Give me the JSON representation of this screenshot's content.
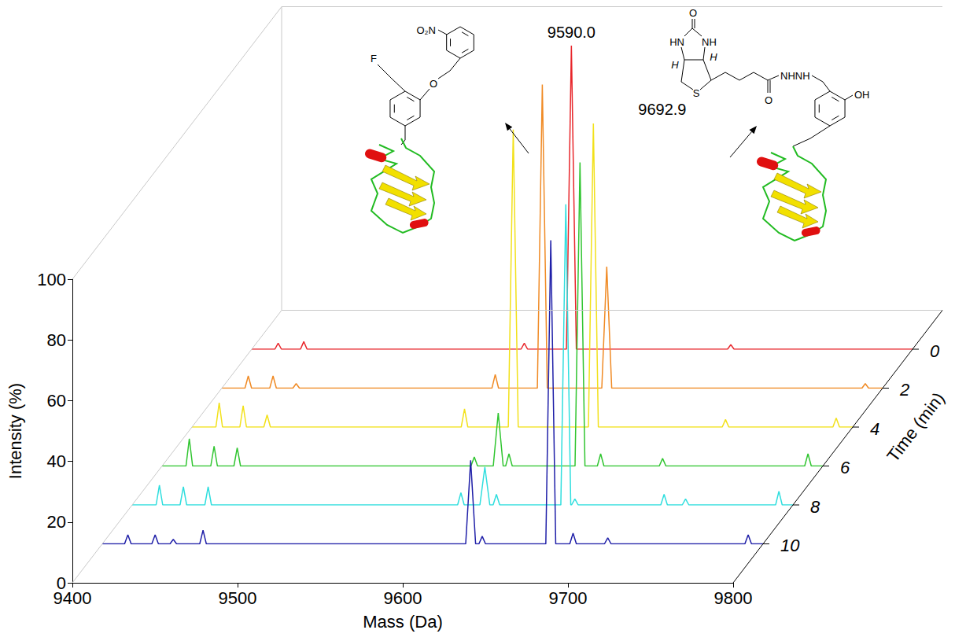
{
  "chart_data": {
    "type": "line",
    "x_label": "Mass (Da)",
    "y_label": "Intensity (%)",
    "z_label": "Time (min)",
    "xlim": [
      9400,
      9800
    ],
    "xticks": [
      9400,
      9500,
      9600,
      9700,
      9800
    ],
    "ylim": [
      0,
      100
    ],
    "yticks": [
      0,
      20,
      40,
      60,
      80,
      100
    ],
    "zlim": [
      -2,
      12
    ],
    "zticks": [
      0,
      2,
      4,
      6,
      8,
      10
    ],
    "grid": false,
    "series": [
      {
        "time": 0,
        "color": "#e8262b",
        "x": [
          9400,
          9414,
          9416,
          9418,
          9429.5,
          9431.5,
          9433.5,
          9563,
          9565,
          9567,
          9590.5,
          9593.5,
          9596.5,
          9688,
          9690,
          9692,
          9800
        ],
        "values": [
          0,
          0,
          2,
          0,
          0,
          2.5,
          0,
          0,
          2,
          0,
          0,
          100,
          0,
          0,
          1.5,
          0,
          0
        ]
      },
      {
        "time": 2,
        "color": "#f08a24",
        "x": [
          9400,
          9414,
          9416,
          9418,
          9429,
          9431,
          9433,
          9443,
          9445,
          9447,
          9563.5,
          9565.5,
          9567.5,
          9591,
          9594,
          9597,
          9630,
          9633,
          9636,
          9787.5,
          9789.5,
          9791.5,
          9800
        ],
        "values": [
          0,
          0,
          4,
          0,
          0,
          4,
          0,
          0,
          1.5,
          0,
          0,
          4.5,
          0,
          0,
          100,
          0,
          0,
          40,
          0,
          0,
          1.5,
          0,
          0
        ]
      },
      {
        "time": 4,
        "color": "#f2e11a",
        "x": [
          9400,
          9414.5,
          9416.5,
          9418.5,
          9429,
          9431,
          9433,
          9443.5,
          9445.5,
          9447.5,
          9563,
          9565,
          9567,
          9591.5,
          9594.5,
          9597.5,
          9640,
          9643,
          9646,
          9721,
          9723,
          9725,
          9788,
          9790,
          9792,
          9800
        ],
        "values": [
          0,
          0,
          8,
          0,
          0,
          7,
          0,
          0,
          4,
          0,
          0,
          6,
          0,
          0,
          98,
          0,
          0,
          100,
          0,
          0,
          2.5,
          0,
          0,
          3,
          0,
          0
        ]
      },
      {
        "time": 6,
        "color": "#30c530",
        "x": [
          9400,
          9414.5,
          9416.5,
          9418.5,
          9429.5,
          9431.5,
          9433.5,
          9443.5,
          9445.5,
          9447.5,
          9587,
          9589,
          9591,
          9600.5,
          9603.5,
          9606.5,
          9608,
          9610,
          9612,
          9650,
          9653,
          9656,
          9663.5,
          9665.5,
          9667.5,
          9701,
          9703,
          9705,
          9789,
          9791,
          9793,
          9800
        ],
        "values": [
          0,
          0,
          9,
          0,
          0,
          6.5,
          0,
          0,
          6,
          0,
          0,
          3,
          0,
          0,
          17.5,
          0,
          0,
          4,
          0,
          0,
          100,
          0,
          0,
          4,
          0,
          0,
          2.5,
          0,
          0,
          4,
          0,
          0
        ]
      },
      {
        "time": 8,
        "color": "#2fdede",
        "x": [
          9400,
          9414.5,
          9416.5,
          9418.5,
          9429,
          9431,
          9433,
          9444,
          9446,
          9448,
          9597,
          9599,
          9601,
          9610.5,
          9613.5,
          9616.5,
          9618.5,
          9620.5,
          9622.5,
          9659.5,
          9662.5,
          9665.5,
          9666,
          9668,
          9670,
          9720,
          9722,
          9724,
          9733,
          9735,
          9737,
          9789.5,
          9791.5,
          9793.5,
          9800
        ],
        "values": [
          0,
          0,
          6.5,
          0,
          0,
          6,
          0,
          0,
          6,
          0,
          0,
          4,
          0,
          0,
          12.5,
          0,
          0,
          3.5,
          0,
          0,
          99,
          0,
          0,
          2,
          0,
          0,
          3.5,
          0,
          0,
          2,
          0,
          0,
          4.5,
          0,
          0
        ]
      },
      {
        "time": 10,
        "color": "#1f1fa8",
        "x": [
          9400,
          9413.5,
          9415.5,
          9417.5,
          9430,
          9432,
          9434,
          9441,
          9443,
          9445,
          9459,
          9461,
          9463,
          9620,
          9623,
          9626,
          9628,
          9630,
          9632,
          9668.5,
          9671.5,
          9674.5,
          9683,
          9685,
          9687,
          9704,
          9706,
          9708,
          9789,
          9791,
          9793,
          9800
        ],
        "values": [
          0,
          0,
          3,
          0,
          0,
          3,
          0,
          0,
          1.5,
          0,
          0,
          4.5,
          0,
          0,
          27.5,
          0,
          0,
          2.5,
          0,
          0,
          100,
          0,
          0,
          3.5,
          0,
          0,
          2,
          0,
          0,
          3,
          0,
          0
        ]
      }
    ],
    "annotations": [
      {
        "text": "9590.0",
        "time": 0,
        "x": 9593.5,
        "y": 100
      },
      {
        "text": "9692.9",
        "time": 4,
        "x": 9643,
        "y": 100
      }
    ],
    "structures": [
      {
        "atoms": [
          "O₂N",
          "O",
          "F"
        ]
      },
      {
        "atoms": [
          "O",
          "HN",
          "NH",
          "H",
          "H",
          "S",
          "O",
          "NHNH",
          "OH"
        ]
      }
    ]
  }
}
